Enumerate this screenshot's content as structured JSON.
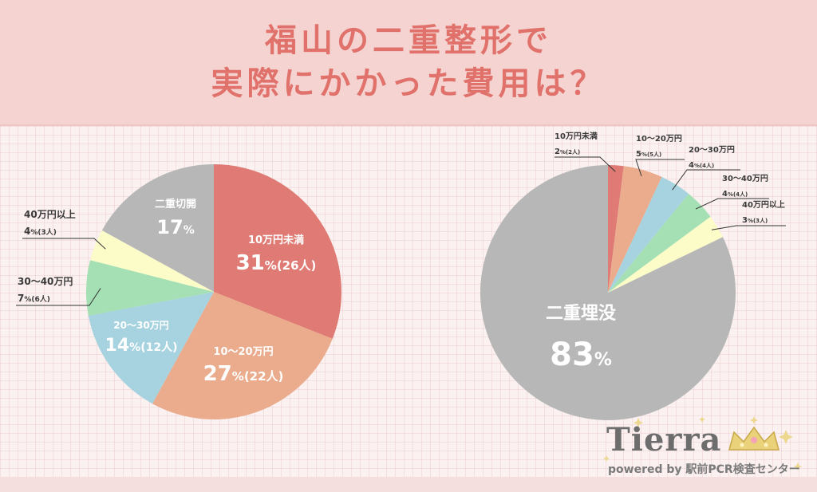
{
  "header": {
    "title_line1": "福山の二重整形で",
    "title_line2": "実際にかかった費用は？"
  },
  "chart_data": [
    {
      "type": "pie",
      "title": "",
      "slices": [
        {
          "label": "10万円未満",
          "value": 31,
          "count": "(26人)",
          "color": "#df7b74"
        },
        {
          "label": "10〜20万円",
          "value": 27,
          "count": "(22人)",
          "color": "#eaac8d"
        },
        {
          "label": "20〜30万円",
          "value": 14,
          "count": "(12人)",
          "color": "#a6d3df"
        },
        {
          "label": "30〜40万円",
          "value": 7,
          "count": "(6人)",
          "color": "#a5e0b4"
        },
        {
          "label": "40万円以上",
          "value": 4,
          "count": "(3人)",
          "color": "#fbfcc8"
        },
        {
          "label": "二重切開",
          "value": 17,
          "count": "",
          "color": "#b7b7b7"
        }
      ]
    },
    {
      "type": "pie",
      "title": "",
      "slices": [
        {
          "label": "10万円未満",
          "value": 2,
          "count": "(2人)",
          "color": "#df7b74"
        },
        {
          "label": "10〜20万円",
          "value": 5,
          "count": "(5人)",
          "color": "#eaac8d"
        },
        {
          "label": "20〜30万円",
          "value": 4,
          "count": "(4人)",
          "color": "#a6d3df"
        },
        {
          "label": "30〜40万円",
          "value": 4,
          "count": "(4人)",
          "color": "#a5e0b4"
        },
        {
          "label": "40万円以上",
          "value": 3,
          "count": "(3人)",
          "color": "#fbfcc8"
        },
        {
          "label": "二重埋没",
          "value": 83,
          "count": "",
          "color": "#b7b7b7"
        }
      ]
    }
  ],
  "percent_sign": "%",
  "logo": {
    "wordmark": "Tierra",
    "tagline": "powered by 駅前PCR検査センター"
  }
}
